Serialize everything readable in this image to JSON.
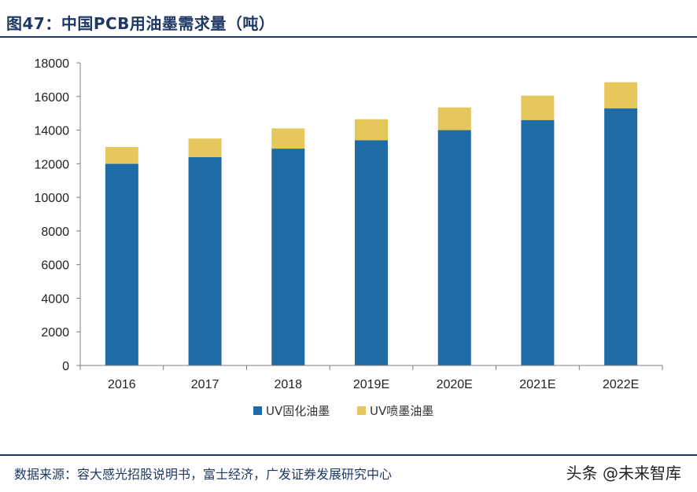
{
  "title": "图47：中国PCB用油墨需求量（吨）",
  "source": "数据来源：容大感光招股说明书，富士经济，广发证券发展研究中心",
  "watermark": "头条 @未来智库",
  "chart_data": {
    "type": "bar",
    "stacked": true,
    "categories": [
      "2016",
      "2017",
      "2018",
      "2019E",
      "2020E",
      "2021E",
      "2022E"
    ],
    "series": [
      {
        "name": "UV固化油墨",
        "color": "#1f6ba5",
        "values": [
          12000,
          12400,
          12900,
          13400,
          14000,
          14600,
          15300
        ]
      },
      {
        "name": "UV喷墨油墨",
        "color": "#e6c75c",
        "values": [
          1000,
          1100,
          1200,
          1250,
          1350,
          1450,
          1550
        ]
      }
    ],
    "ylim": [
      0,
      18000
    ],
    "yticks": [
      0,
      2000,
      4000,
      6000,
      8000,
      10000,
      12000,
      14000,
      16000,
      18000
    ],
    "grid": false,
    "legend_position": "bottom-center"
  }
}
